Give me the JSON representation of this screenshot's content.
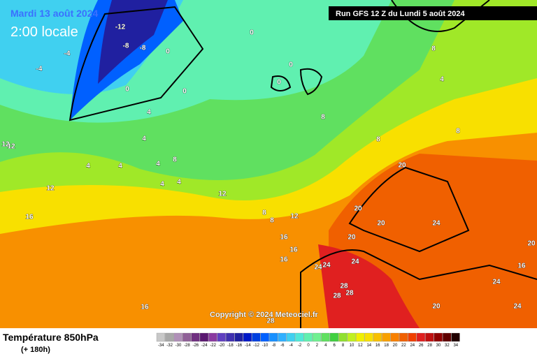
{
  "header": {
    "date": "Mardi 13 août 2024",
    "time": "2:00 locale",
    "run": "Run GFS 12 Z du Lundi 5 août 2024"
  },
  "copyright": "Copyright © 2024 Meteociel.fr",
  "footer": {
    "title": "Température 850hPa",
    "lead": "(+ 180h)"
  },
  "legend": {
    "ticks": [
      -34,
      -32,
      -30,
      -28,
      -26,
      -24,
      -22,
      -20,
      -18,
      -16,
      -14,
      -12,
      -10,
      -8,
      -6,
      -4,
      -2,
      0,
      2,
      4,
      6,
      8,
      10,
      12,
      14,
      16,
      18,
      20,
      22,
      24,
      26,
      28,
      30,
      32,
      34
    ],
    "colors": [
      "#c8c8c8",
      "#a8a8a8",
      "#b090b8",
      "#906098",
      "#703080",
      "#5a1870",
      "#8a3aa0",
      "#6040c0",
      "#4030b0",
      "#2020a0",
      "#0018c8",
      "#0040e0",
      "#0060ff",
      "#1890ff",
      "#30b0ff",
      "#40d0f0",
      "#50e8d8",
      "#60f0b0",
      "#70f090",
      "#60e060",
      "#40d040",
      "#90e030",
      "#c0f020",
      "#f0f000",
      "#f8e000",
      "#f8c000",
      "#f8a000",
      "#f88000",
      "#f06000",
      "#f04000",
      "#e02020",
      "#c01010",
      "#900000",
      "#600000",
      "#200000"
    ]
  },
  "map_labels": [
    -12,
    -8,
    -8,
    0,
    0,
    0,
    0,
    0,
    -4,
    -4,
    0,
    4,
    4,
    4,
    4,
    4,
    8,
    4,
    4,
    12,
    12,
    12,
    16,
    8,
    8,
    12,
    16,
    16,
    16,
    16,
    8,
    8,
    8,
    4,
    8,
    20,
    20,
    20,
    24,
    20,
    24,
    24,
    24,
    28,
    28,
    28,
    20,
    24,
    24,
    28,
    20,
    16,
    12
  ]
}
